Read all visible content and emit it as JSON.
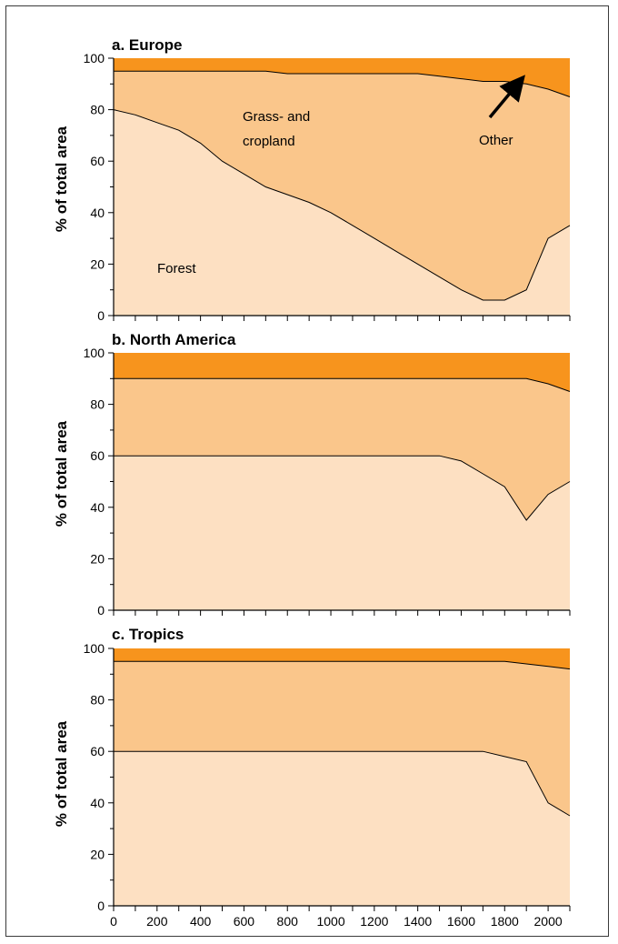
{
  "colors": {
    "forest": "#fde0c2",
    "grass": "#fac68b",
    "other": "#f7941d",
    "line": "#000000",
    "frame": "#3a3a3a"
  },
  "chart_data": [
    {
      "type": "area",
      "title": "a.  Europe",
      "ylabel": "% of total area",
      "xlim": [
        0,
        2100
      ],
      "ylim": [
        0,
        100
      ],
      "yticks": [
        0,
        20,
        40,
        60,
        80,
        100
      ],
      "xticks": [
        0,
        200,
        400,
        600,
        800,
        1000,
        1200,
        1400,
        1600,
        1800,
        2000
      ],
      "show_x_tick_labels": false,
      "series": [
        {
          "name": "Forest",
          "x": [
            0,
            100,
            200,
            300,
            400,
            500,
            600,
            700,
            800,
            900,
            1000,
            1100,
            1200,
            1300,
            1400,
            1500,
            1600,
            1700,
            1800,
            1900,
            2000,
            2100
          ],
          "y": [
            80,
            78,
            75,
            72,
            67,
            60,
            55,
            50,
            47,
            44,
            40,
            35,
            30,
            25,
            20,
            15,
            10,
            6,
            6,
            10,
            30,
            35
          ]
        },
        {
          "name": "Grass- and cropland",
          "x": [
            0,
            100,
            200,
            300,
            400,
            500,
            600,
            700,
            800,
            900,
            1000,
            1100,
            1200,
            1300,
            1400,
            1500,
            1600,
            1700,
            1800,
            1900,
            2000,
            2100
          ],
          "y": [
            95,
            95,
            95,
            95,
            95,
            95,
            95,
            95,
            94,
            94,
            94,
            94,
            94,
            94,
            94,
            93,
            92,
            91,
            91,
            90,
            88,
            85
          ]
        }
      ],
      "top_name": "Other",
      "annotations": [
        "Forest",
        "Grass- and",
        "cropland",
        "Other"
      ]
    },
    {
      "type": "area",
      "title": "b.  North America",
      "ylabel": "% of total area",
      "xlim": [
        0,
        2100
      ],
      "ylim": [
        0,
        100
      ],
      "yticks": [
        0,
        20,
        40,
        60,
        80,
        100
      ],
      "xticks": [
        0,
        200,
        400,
        600,
        800,
        1000,
        1200,
        1400,
        1600,
        1800,
        2000
      ],
      "show_x_tick_labels": false,
      "series": [
        {
          "name": "Forest",
          "x": [
            0,
            1500,
            1600,
            1700,
            1800,
            1900,
            2000,
            2100
          ],
          "y": [
            60,
            60,
            58,
            53,
            48,
            35,
            45,
            50
          ]
        },
        {
          "name": "Grass- and cropland",
          "x": [
            0,
            1900,
            2000,
            2100
          ],
          "y": [
            90,
            90,
            88,
            85
          ]
        }
      ]
    },
    {
      "type": "area",
      "title": "c.  Tropics",
      "ylabel": "% of total area",
      "xlim": [
        0,
        2100
      ],
      "ylim": [
        0,
        100
      ],
      "yticks": [
        0,
        20,
        40,
        60,
        80,
        100
      ],
      "xticks": [
        0,
        200,
        400,
        600,
        800,
        1000,
        1200,
        1400,
        1600,
        1800,
        2000
      ],
      "show_x_tick_labels": true,
      "series": [
        {
          "name": "Forest",
          "x": [
            0,
            1700,
            1800,
            1900,
            2000,
            2100
          ],
          "y": [
            60,
            60,
            58,
            56,
            40,
            35
          ]
        },
        {
          "name": "Grass- and cropland",
          "x": [
            0,
            1800,
            1900,
            2000,
            2100
          ],
          "y": [
            95,
            95,
            94,
            93,
            92
          ]
        }
      ]
    }
  ]
}
